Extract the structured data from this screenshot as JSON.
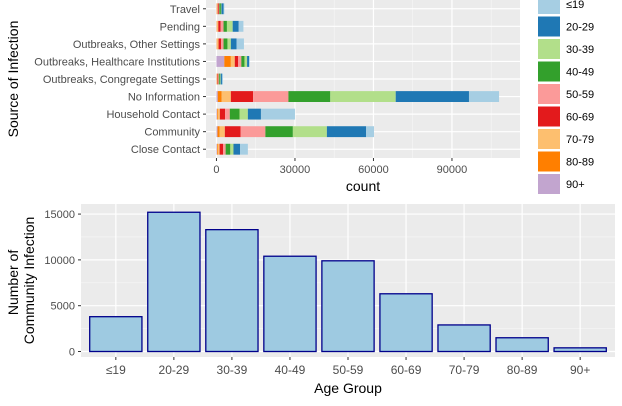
{
  "chart_data": [
    {
      "type": "bar",
      "orientation": "horizontal",
      "stacked": true,
      "ylabel": "Source of Infection",
      "xlabel": "count",
      "xlim": [
        -4000,
        116000
      ],
      "xticks": [
        0,
        30000,
        60000,
        90000
      ],
      "xtick_labels": [
        "0",
        "30000",
        "60000",
        "90000"
      ],
      "grid": true,
      "legend_position": "right",
      "categories": [
        "Close Contact",
        "Community",
        "Household Contact",
        "No Information",
        "Outbreaks, Congregate Settings",
        "Outbreaks, Healthcare Institutions",
        "Outbreaks, Other Settings",
        "Pending",
        "Travel"
      ],
      "series": [
        {
          "name": "90+",
          "color": "#C2A5CF",
          "values": [
            200,
            400,
            200,
            500,
            100,
            3000,
            100,
            100,
            100
          ]
        },
        {
          "name": "80-89",
          "color": "#FF7F00",
          "values": [
            300,
            800,
            300,
            1500,
            100,
            2500,
            200,
            200,
            100
          ]
        },
        {
          "name": "70-79",
          "color": "#FDBF6F",
          "values": [
            700,
            2000,
            800,
            3500,
            200,
            1500,
            500,
            400,
            300
          ]
        },
        {
          "name": "60-69",
          "color": "#E31A1C",
          "values": [
            1300,
            6000,
            2000,
            8500,
            300,
            1300,
            1000,
            900,
            400
          ]
        },
        {
          "name": "50-59",
          "color": "#FB9A99",
          "values": [
            1000,
            9500,
            1800,
            13500,
            200,
            1200,
            900,
            1100,
            200
          ]
        },
        {
          "name": "40-49",
          "color": "#33A02C",
          "values": [
            1800,
            10500,
            3700,
            16000,
            400,
            1200,
            1500,
            1300,
            600
          ]
        },
        {
          "name": "30-39",
          "color": "#B2DF8A",
          "values": [
            1200,
            13000,
            3200,
            25000,
            300,
            1000,
            1300,
            2200,
            200
          ]
        },
        {
          "name": "20-29",
          "color": "#1F78B4",
          "values": [
            2500,
            15000,
            5000,
            28000,
            500,
            800,
            2200,
            2300,
            800
          ]
        },
        {
          "name": "≤19",
          "color": "#A6CEE3",
          "values": [
            3000,
            3000,
            13000,
            11500,
            400,
            200,
            2800,
            1800,
            300
          ]
        }
      ],
      "legend": [
        {
          "label": "≤19",
          "color": "#A6CEE3"
        },
        {
          "label": "20-29",
          "color": "#1F78B4"
        },
        {
          "label": "30-39",
          "color": "#B2DF8A"
        },
        {
          "label": "40-49",
          "color": "#33A02C"
        },
        {
          "label": "50-59",
          "color": "#FB9A99"
        },
        {
          "label": "60-69",
          "color": "#E31A1C"
        },
        {
          "label": "70-79",
          "color": "#FDBF6F"
        },
        {
          "label": "80-89",
          "color": "#FF7F00"
        },
        {
          "label": "90+",
          "color": "#C2A5CF"
        }
      ]
    },
    {
      "type": "bar",
      "orientation": "vertical",
      "xlabel": "Age Group",
      "ylabel": "Number of Community Infection",
      "ylabel_lines": [
        "Number of",
        "Community Infection"
      ],
      "categories": [
        "≤19",
        "20-29",
        "30-39",
        "40-49",
        "50-59",
        "60-69",
        "70-79",
        "80-89",
        "90+"
      ],
      "values": [
        3800,
        15200,
        13300,
        10400,
        9900,
        6300,
        2900,
        1500,
        400
      ],
      "ylim": [
        -600,
        16100
      ],
      "yticks": [
        0,
        5000,
        10000,
        15000
      ],
      "ytick_labels": [
        "0",
        "5000",
        "10000",
        "15000"
      ],
      "bar_fill": "#9ECAE1",
      "bar_stroke": "#00008B",
      "grid": true
    }
  ]
}
